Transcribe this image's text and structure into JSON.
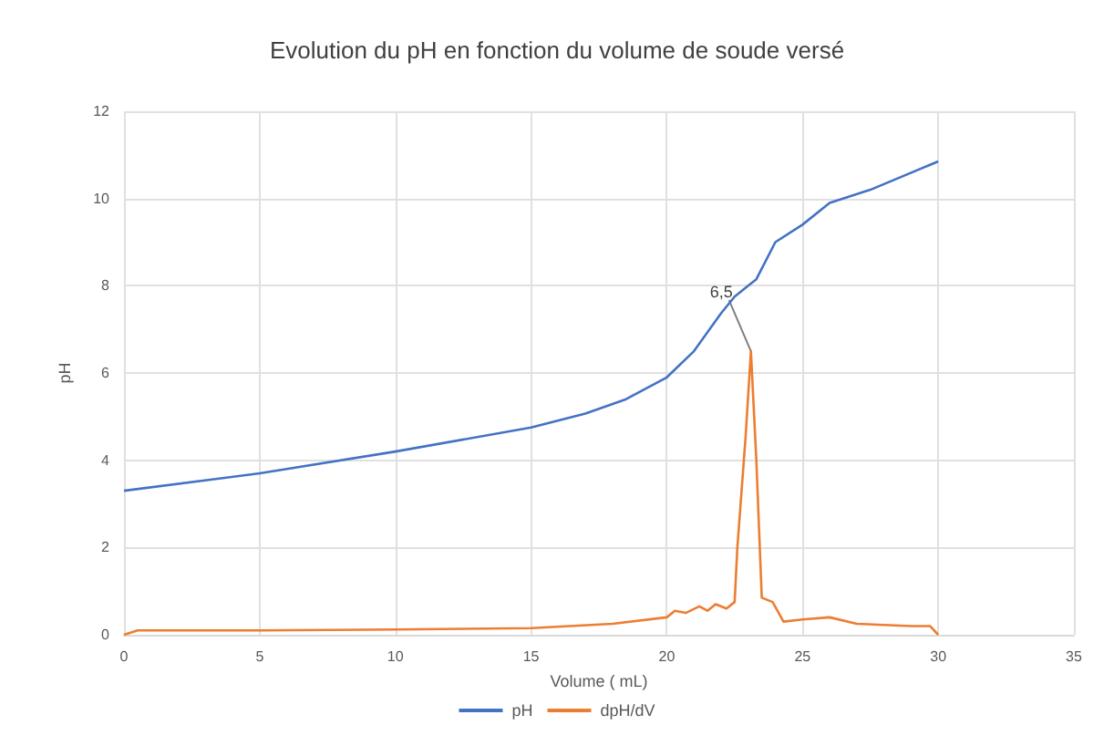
{
  "chart_data": {
    "type": "line",
    "title": "Evolution du pH en fonction du volume de soude versé",
    "xlabel": "Volume ( mL)",
    "ylabel": "pH",
    "series": [
      {
        "name": "pH",
        "color": "#4472c4",
        "x": [
          0,
          5,
          10,
          15,
          17,
          18.5,
          20,
          21,
          22,
          22.5,
          23,
          23.3,
          24,
          25,
          26,
          27.5,
          30
        ],
        "values": [
          3.3,
          3.7,
          4.2,
          4.75,
          5.07,
          5.4,
          5.9,
          6.5,
          7.37,
          7.75,
          8.0,
          8.15,
          9.0,
          9.4,
          9.9,
          10.2,
          10.85
        ]
      },
      {
        "name": "dpH/dV",
        "color": "#ed7d31",
        "x": [
          0,
          0.5,
          5,
          10,
          15,
          18,
          20,
          20.3,
          20.7,
          21.2,
          21.5,
          21.8,
          22.2,
          22.5,
          22.6,
          22.9,
          23.1,
          23.3,
          23.5,
          23.9,
          24.3,
          25,
          26,
          27,
          29,
          29.7,
          30
        ],
        "values": [
          0,
          0.1,
          0.1,
          0.12,
          0.15,
          0.25,
          0.4,
          0.55,
          0.5,
          0.65,
          0.55,
          0.7,
          0.6,
          0.75,
          2.0,
          4.5,
          6.5,
          4.0,
          0.85,
          0.75,
          0.3,
          0.35,
          0.4,
          0.25,
          0.2,
          0.2,
          0
        ]
      }
    ],
    "annotations": [
      {
        "text": "6,5",
        "x": 23.1,
        "y": 6.5
      }
    ],
    "xlim": [
      0,
      35
    ],
    "xticks": [
      0,
      5,
      10,
      15,
      20,
      25,
      30,
      35
    ],
    "ylim": [
      0,
      12
    ],
    "yticks": [
      0,
      2,
      4,
      6,
      8,
      10,
      12
    ],
    "grid": true,
    "legend": "bottom",
    "marker": "none",
    "line_style": "solid"
  }
}
